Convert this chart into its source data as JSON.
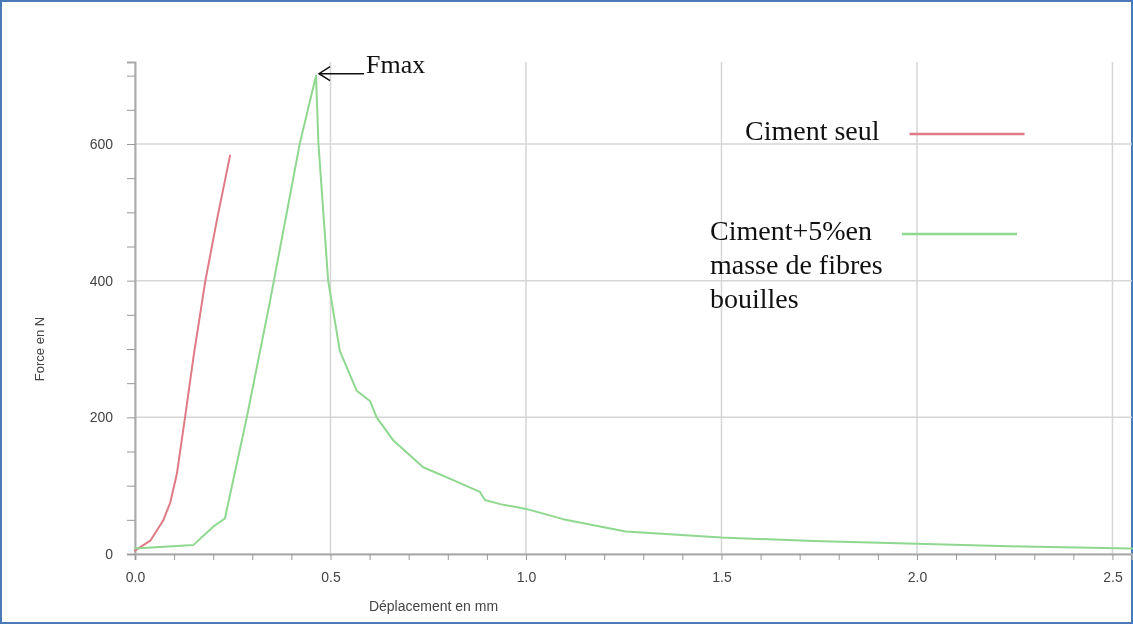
{
  "chart_data": {
    "type": "line",
    "xlabel": "Déplacement en mm",
    "ylabel": "Force en N",
    "xlim": [
      0,
      2.55
    ],
    "ylim": [
      0,
      720
    ],
    "xticks": [
      {
        "value": 0,
        "label": "0.0"
      },
      {
        "value": 0.1,
        "label": null
      },
      {
        "value": 0.2,
        "label": null
      },
      {
        "value": 0.3,
        "label": null
      },
      {
        "value": 0.4,
        "label": null
      },
      {
        "value": 0.5,
        "label": "0.5"
      },
      {
        "value": 0.6,
        "label": null
      },
      {
        "value": 0.7,
        "label": null
      },
      {
        "value": 0.8,
        "label": null
      },
      {
        "value": 0.9,
        "label": null
      },
      {
        "value": 1.0,
        "label": "1.0"
      },
      {
        "value": 1.1,
        "label": null
      },
      {
        "value": 1.2,
        "label": null
      },
      {
        "value": 1.3,
        "label": null
      },
      {
        "value": 1.4,
        "label": null
      },
      {
        "value": 1.5,
        "label": "1.5"
      },
      {
        "value": 1.6,
        "label": null
      },
      {
        "value": 1.7,
        "label": null
      },
      {
        "value": 1.8,
        "label": null
      },
      {
        "value": 1.9,
        "label": null
      },
      {
        "value": 2.0,
        "label": "2.0"
      },
      {
        "value": 2.1,
        "label": null
      },
      {
        "value": 2.2,
        "label": null
      },
      {
        "value": 2.3,
        "label": null
      },
      {
        "value": 2.4,
        "label": null
      },
      {
        "value": 2.5,
        "label": "2.5"
      }
    ],
    "yticks": [
      0,
      {
        "value": 50,
        "label": null
      },
      {
        "value": 100,
        "label": null
      },
      {
        "value": 150,
        "label": null
      },
      200,
      {
        "value": 250,
        "label": null
      },
      {
        "value": 300,
        "label": null
      },
      {
        "value": 350,
        "label": null
      },
      400,
      {
        "value": 450,
        "label": null
      },
      {
        "value": 500,
        "label": null
      },
      {
        "value": 550,
        "label": null
      },
      600,
      {
        "value": 650,
        "label": null
      },
      {
        "value": 700,
        "label": null
      }
    ],
    "grid": true,
    "legend": "top right",
    "line_style": "solid",
    "marker": "none",
    "annotations": [
      {
        "text": "Fmax",
        "x": 0.463,
        "y": 700
      }
    ],
    "series": [
      {
        "name": "Ciment seul",
        "color": "#e07a86",
        "x": [
          0,
          0.04,
          0.072,
          0.09,
          0.107,
          0.128,
          0.15,
          0.18,
          0.21,
          0.243
        ],
        "values": [
          5,
          20,
          49,
          75,
          117,
          200,
          290,
          400,
          490,
          583
        ]
      },
      {
        "name": "Ciment+5%en masse de fibres bouilles",
        "color": "#8fd88f",
        "x": [
          0,
          0.149,
          0.2,
          0.23,
          0.286,
          0.345,
          0.422,
          0.463,
          0.469,
          0.494,
          0.524,
          0.567,
          0.601,
          0.618,
          0.661,
          0.737,
          0.814,
          0.882,
          0.895,
          0.934,
          1.0,
          1.095,
          1.255,
          1.5,
          1.735,
          2.0,
          2.268,
          2.55
        ],
        "values": [
          8,
          13,
          40,
          52,
          200,
          369,
          602,
          700,
          602,
          400,
          297,
          239,
          224,
          200,
          166,
          127,
          108,
          91,
          79,
          73,
          66,
          51,
          33,
          24,
          19,
          15,
          11,
          8
        ]
      }
    ]
  }
}
